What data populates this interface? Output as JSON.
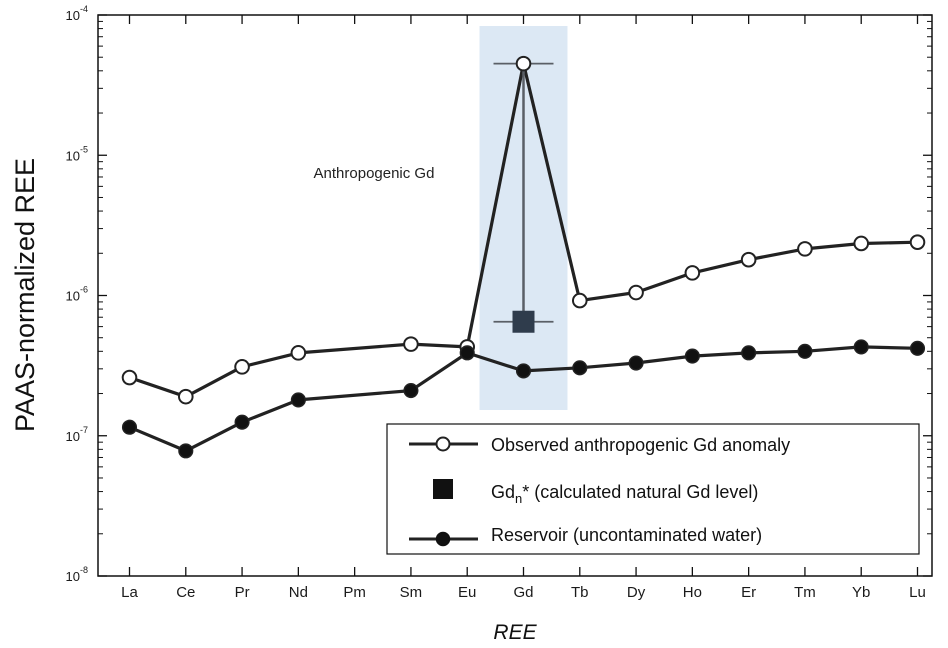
{
  "chart_data": {
    "type": "line",
    "xlabel": "REE",
    "ylabel": "PAAS-normalized REE",
    "yscale": "log",
    "ylim": [
      1e-08,
      0.0001
    ],
    "ytick_labels": [
      {
        "base": "10",
        "exp": "-8"
      },
      {
        "base": "10",
        "exp": "-7"
      },
      {
        "base": "10",
        "exp": "-6"
      },
      {
        "base": "10",
        "exp": "-5"
      },
      {
        "base": "10",
        "exp": "-4"
      }
    ],
    "categories": [
      "La",
      "Ce",
      "Pr",
      "Nd",
      "Pm",
      "Sm",
      "Eu",
      "Gd",
      "Tb",
      "Dy",
      "Ho",
      "Er",
      "Tm",
      "Yb",
      "Lu"
    ],
    "annotation": "Anthropogenic Gd",
    "highlight_category": "Gd",
    "series": [
      {
        "name": "Observed anthropogenic Gd anomaly",
        "marker": "open-circle",
        "points": [
          {
            "x": "La",
            "y": 2.6e-07
          },
          {
            "x": "Ce",
            "y": 1.9e-07
          },
          {
            "x": "Pr",
            "y": 3.1e-07
          },
          {
            "x": "Nd",
            "y": 3.9e-07
          },
          {
            "x": "Sm",
            "y": 4.5e-07
          },
          {
            "x": "Eu",
            "y": 4.3e-07
          },
          {
            "x": "Gd",
            "y": 4.5e-05
          },
          {
            "x": "Tb",
            "y": 9.2e-07
          },
          {
            "x": "Dy",
            "y": 1.05e-06
          },
          {
            "x": "Ho",
            "y": 1.45e-06
          },
          {
            "x": "Er",
            "y": 1.8e-06
          },
          {
            "x": "Tm",
            "y": 2.15e-06
          },
          {
            "x": "Yb",
            "y": 2.35e-06
          },
          {
            "x": "Lu",
            "y": 2.4e-06
          }
        ]
      },
      {
        "name": "Reservoir (uncontaminated water)",
        "marker": "filled-circle",
        "points": [
          {
            "x": "La",
            "y": 1.15e-07
          },
          {
            "x": "Ce",
            "y": 7.8e-08
          },
          {
            "x": "Pr",
            "y": 1.25e-07
          },
          {
            "x": "Nd",
            "y": 1.8e-07
          },
          {
            "x": "Sm",
            "y": 2.1e-07
          },
          {
            "x": "Eu",
            "y": 3.9e-07
          },
          {
            "x": "Gd",
            "y": 2.9e-07
          },
          {
            "x": "Tb",
            "y": 3.05e-07
          },
          {
            "x": "Dy",
            "y": 3.3e-07
          },
          {
            "x": "Ho",
            "y": 3.7e-07
          },
          {
            "x": "Er",
            "y": 3.9e-07
          },
          {
            "x": "Tm",
            "y": 4e-07
          },
          {
            "x": "Yb",
            "y": 4.3e-07
          },
          {
            "x": "Lu",
            "y": 4.2e-07
          }
        ]
      }
    ],
    "gd_natural": {
      "category": "Gd",
      "value": 6.5e-07
    },
    "legend": {
      "placement": "bottom-right",
      "entries": [
        {
          "label": "Observed anthropogenic Gd anomaly",
          "marker": "open-circle-line"
        },
        {
          "label_main": "Gd",
          "label_sub": "n",
          "label_rest": "* (calculated natural Gd level)",
          "marker": "filled-square"
        },
        {
          "label": "Reservoir (uncontaminated water)",
          "marker": "filled-circle-line"
        }
      ]
    },
    "colors": {
      "highlight_fill": "#dce8f4",
      "line": "#222222",
      "square": "#2f3c4c",
      "axis": "#111111"
    },
    "grid": false
  }
}
